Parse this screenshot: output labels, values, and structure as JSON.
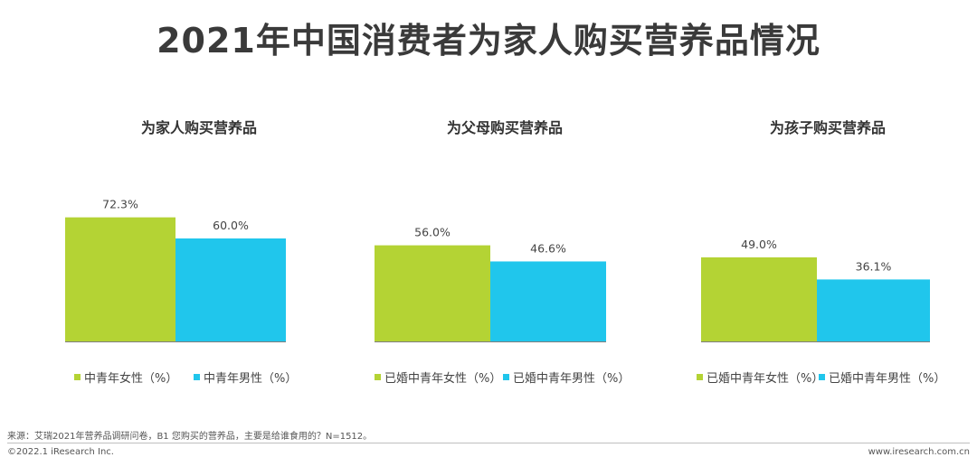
{
  "title": "2021年中国消费者为家人购买营养品情况",
  "chart_data": [
    {
      "type": "bar",
      "title": "为家人购买营养品",
      "unit": "%",
      "ylim": [
        0,
        100
      ],
      "series": [
        {
          "name": "中青年女性（%）",
          "value": 72.3,
          "label": "72.3%",
          "color": "#b4d334"
        },
        {
          "name": "中青年男性（%）",
          "value": 60.0,
          "label": "60.0%",
          "color": "#20c6ec"
        }
      ]
    },
    {
      "type": "bar",
      "title": "为父母购买营养品",
      "unit": "%",
      "ylim": [
        0,
        100
      ],
      "series": [
        {
          "name": "已婚中青年女性（%）",
          "value": 56.0,
          "label": "56.0%",
          "color": "#b4d334"
        },
        {
          "name": "已婚中青年男性（%）",
          "value": 46.6,
          "label": "46.6%",
          "color": "#20c6ec"
        }
      ]
    },
    {
      "type": "bar",
      "title": "为孩子购买营养品",
      "unit": "%",
      "ylim": [
        0,
        100
      ],
      "series": [
        {
          "name": "已婚中青年女性（%）",
          "value": 49.0,
          "label": "49.0%",
          "color": "#b4d334"
        },
        {
          "name": "已婚中青年男性（%）",
          "value": 36.1,
          "label": "36.1%",
          "color": "#20c6ec"
        }
      ]
    }
  ],
  "source": "来源：艾瑞2021年营养品调研问卷，B1 您购买的营养品，主要是给谁食用的？N=1512。",
  "copyright": "©2022.1 iResearch Inc.",
  "website": "www.iresearch.com.cn"
}
